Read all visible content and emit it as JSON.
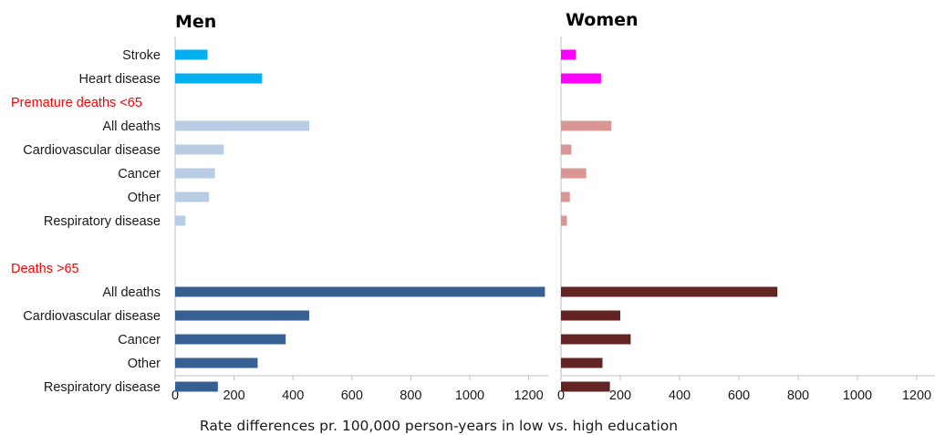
{
  "chart_data": {
    "type": "bar",
    "orientation": "horizontal",
    "xlabel": "Rate differences pr. 100,000 person-years in low vs. high education",
    "xlim": [
      0,
      1200
    ],
    "xticks": [
      0,
      200,
      400,
      600,
      800,
      1000,
      1200
    ],
    "grid": false,
    "rows": [
      {
        "label": "Stroke",
        "kind": "category",
        "group": "g1"
      },
      {
        "label": "Heart disease",
        "kind": "category",
        "group": "g1"
      },
      {
        "label": "Premature deaths <65",
        "kind": "group"
      },
      {
        "label": "All deaths",
        "kind": "category",
        "group": "g2"
      },
      {
        "label": "Cardiovascular disease",
        "kind": "category",
        "group": "g2"
      },
      {
        "label": "Cancer",
        "kind": "category",
        "group": "g2"
      },
      {
        "label": "Other",
        "kind": "category",
        "group": "g2"
      },
      {
        "label": "Respiratory disease",
        "kind": "category",
        "group": "g2"
      },
      {
        "label": "",
        "kind": "spacer"
      },
      {
        "label": "Deaths >65",
        "kind": "group"
      },
      {
        "label": "All deaths",
        "kind": "category",
        "group": "g3"
      },
      {
        "label": "Cardiovascular disease",
        "kind": "category",
        "group": "g3"
      },
      {
        "label": "Cancer",
        "kind": "category",
        "group": "g3"
      },
      {
        "label": "Other",
        "kind": "category",
        "group": "g3"
      },
      {
        "label": "Respiratory disease",
        "kind": "category",
        "group": "g3"
      }
    ],
    "panels": [
      {
        "title": "Men",
        "values": [
          110,
          295,
          null,
          455,
          165,
          135,
          115,
          35,
          null,
          null,
          1255,
          455,
          375,
          280,
          145
        ],
        "colors": {
          "g1": "#00b0f0",
          "g2": "#b8cce4",
          "g3": "#376092"
        }
      },
      {
        "title": "Women",
        "values": [
          50,
          135,
          null,
          170,
          35,
          85,
          30,
          20,
          null,
          null,
          730,
          200,
          235,
          140,
          165
        ],
        "colors": {
          "g1": "#ff00ff",
          "g2": "#da9694",
          "g3": "#632523"
        }
      }
    ],
    "group_label_color": "#ff0000"
  }
}
